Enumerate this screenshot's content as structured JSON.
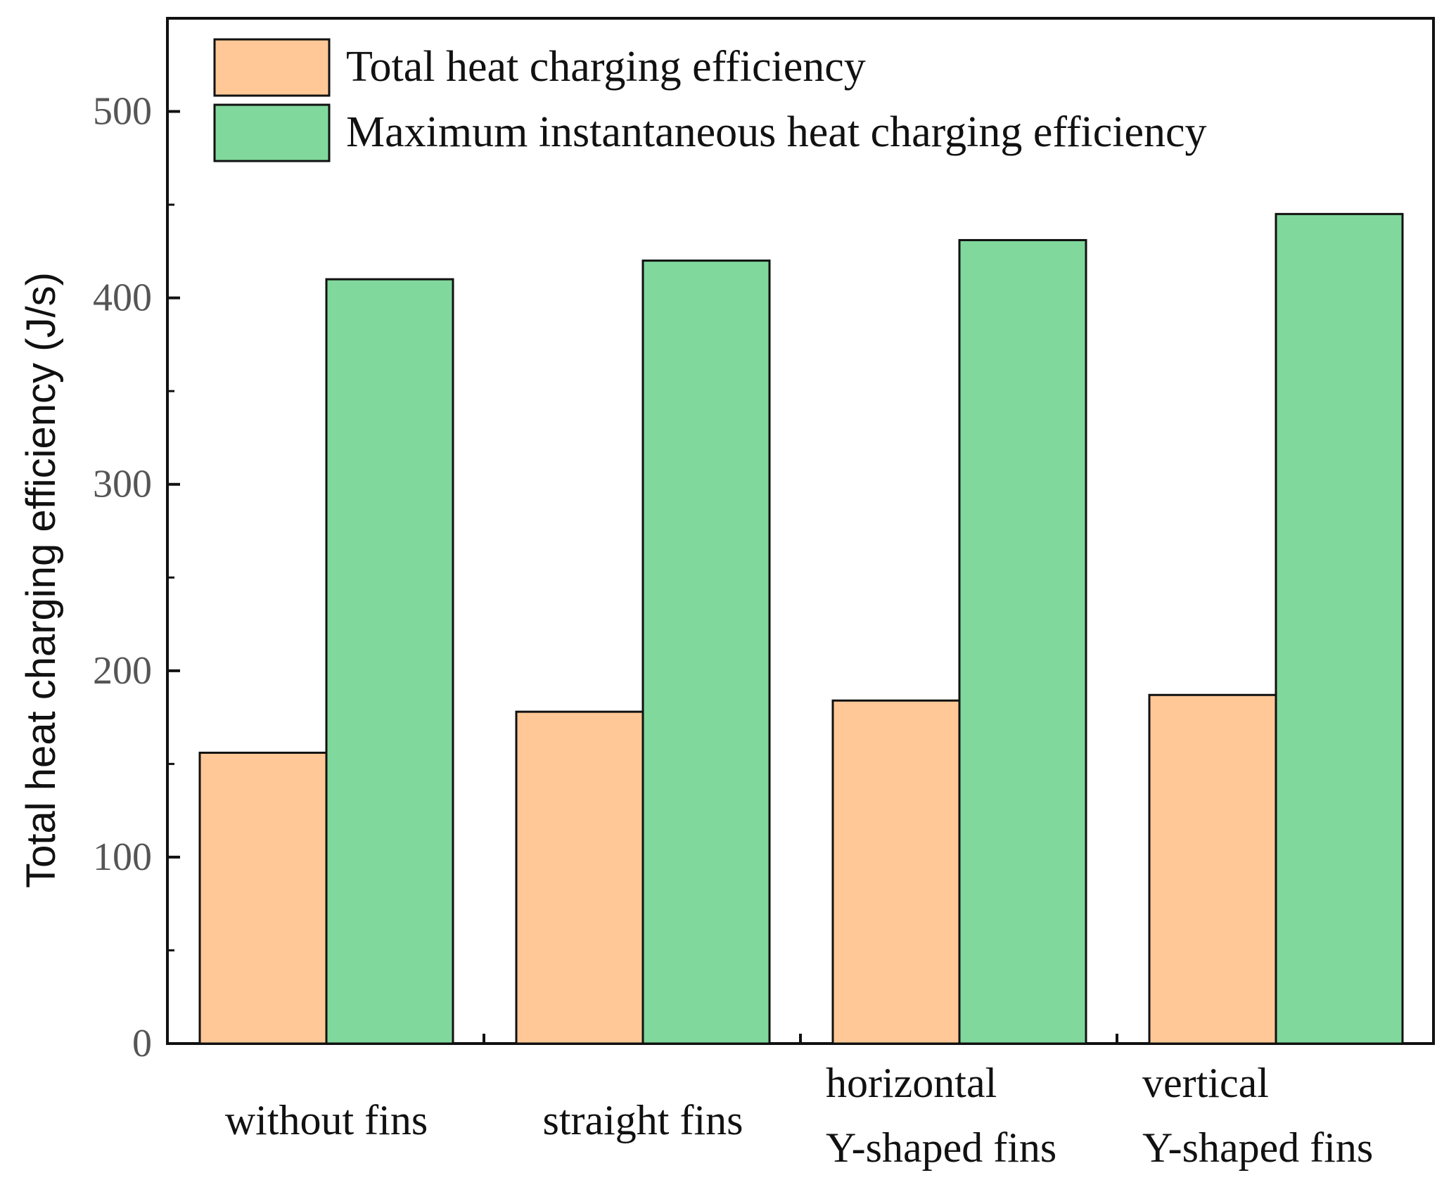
{
  "chart_data": {
    "type": "bar",
    "title": "",
    "xlabel": "",
    "ylabel": "Total heat charging efficiency (J/s)",
    "ylim": [
      0,
      550
    ],
    "yticks": [
      0,
      100,
      200,
      300,
      400,
      500
    ],
    "grid": false,
    "legend_position": "top-left",
    "categories": [
      [
        "without fins"
      ],
      [
        "straight fins"
      ],
      [
        "horizontal",
        "Y-shaped fins"
      ],
      [
        "vertical",
        "Y-shaped fins"
      ]
    ],
    "series": [
      {
        "name": "Total heat charging efficiency",
        "color": "#FFC896",
        "values": [
          156,
          178,
          184,
          187
        ]
      },
      {
        "name": "Maximum instantaneous heat charging efficiency",
        "color": "#80D89C",
        "values": [
          410,
          420,
          431,
          445
        ]
      }
    ]
  }
}
